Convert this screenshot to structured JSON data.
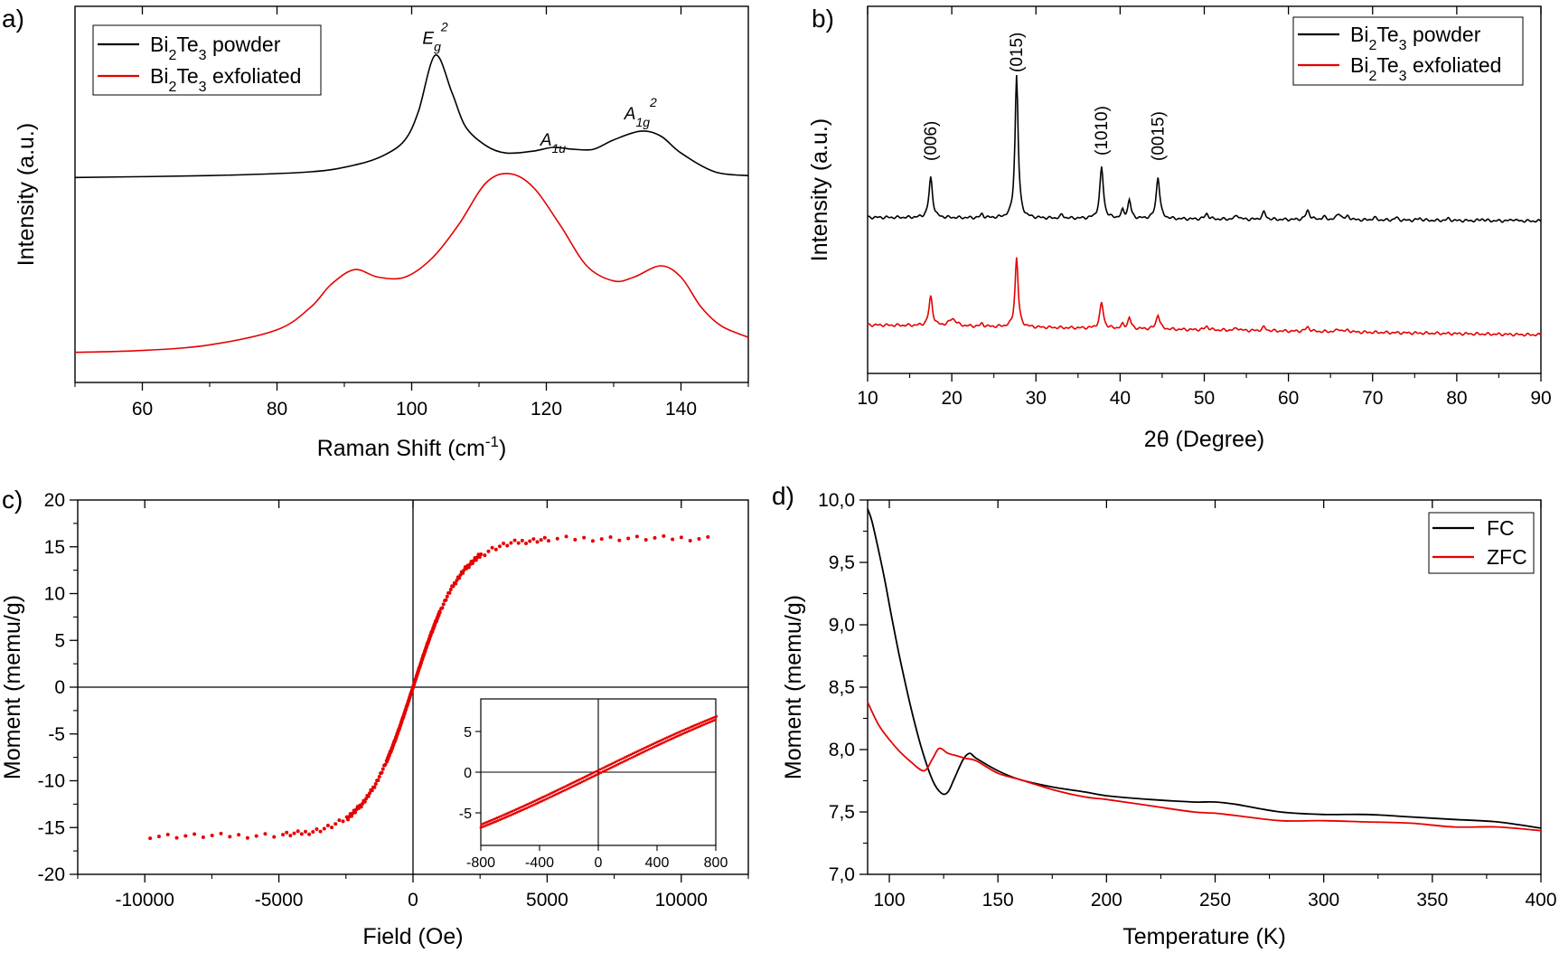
{
  "chart_data": [
    {
      "panel": "a)",
      "type": "line",
      "xlabel": "Raman Shift (cm",
      "xlabel_sup": "-1",
      "xlabel_tail": ")",
      "ylabel": "Intensity (a.u.)",
      "xlim": [
        50,
        150
      ],
      "ylim": [
        0,
        1
      ],
      "xticks": [
        60,
        80,
        100,
        120,
        140
      ],
      "yticks_shown": false,
      "legend_position": "top-left",
      "legend": [
        "Bi2Te3 powder",
        "Bi2Te3 exfoliated"
      ],
      "peak_labels": [
        {
          "base": "E",
          "sub": "g",
          "sup": "2",
          "x": 103.5,
          "y": 0.9
        },
        {
          "base": "A",
          "sub": "1u",
          "sup": "",
          "x": 121,
          "y": 0.63
        },
        {
          "base": "A",
          "sub": "1g",
          "sup": "2",
          "x": 134,
          "y": 0.7
        }
      ],
      "series": [
        {
          "name": "Bi2Te3 powder",
          "color": "#000000",
          "x": [
            50,
            70,
            85,
            92,
            96,
            99,
            101,
            103.5,
            106,
            108,
            111,
            114,
            118,
            121,
            124,
            127,
            130,
            134,
            137,
            140,
            145,
            150
          ],
          "y": [
            0.545,
            0.55,
            0.56,
            0.58,
            0.605,
            0.645,
            0.72,
            0.87,
            0.77,
            0.68,
            0.63,
            0.61,
            0.615,
            0.625,
            0.62,
            0.62,
            0.645,
            0.668,
            0.655,
            0.61,
            0.56,
            0.55
          ]
        },
        {
          "name": "Bi2Te3 exfoliated",
          "color": "#e60000",
          "x": [
            50,
            60,
            70,
            80,
            85,
            88,
            91.5,
            95,
            99,
            103,
            107,
            111,
            114.5,
            118,
            122,
            126,
            130,
            133,
            137,
            140,
            143,
            146,
            150
          ],
          "y": [
            0.08,
            0.085,
            0.1,
            0.14,
            0.2,
            0.26,
            0.3,
            0.28,
            0.28,
            0.33,
            0.42,
            0.53,
            0.555,
            0.52,
            0.42,
            0.31,
            0.27,
            0.28,
            0.31,
            0.28,
            0.2,
            0.15,
            0.12
          ]
        }
      ]
    },
    {
      "panel": "b)",
      "type": "line",
      "xlabel": "2θ (Degree)",
      "ylabel": "Intensity (a.u.)",
      "xlim": [
        10,
        90
      ],
      "ylim": [
        0,
        1
      ],
      "xticks": [
        10,
        20,
        30,
        40,
        50,
        60,
        70,
        80,
        90
      ],
      "yticks_shown": false,
      "legend_position": "top-right",
      "legend": [
        "Bi2Te3 powder",
        "Bi2Te3 exfoliated"
      ],
      "peak_labels": [
        {
          "text": "(006)",
          "x": 17.5
        },
        {
          "text": "(015)",
          "x": 27.7
        },
        {
          "text": "(1010)",
          "x": 37.8
        },
        {
          "text": "(0015)",
          "x": 44.5
        }
      ],
      "series": [
        {
          "name": "Bi2Te3 powder",
          "color": "#000000",
          "baseline_start": 0.425,
          "baseline_end": 0.415,
          "peaks": [
            [
              17.5,
              0.11,
              0.25
            ],
            [
              23.6,
              0.01,
              0.2
            ],
            [
              27.7,
              0.39,
              0.22
            ],
            [
              33.1,
              0.01,
              0.2
            ],
            [
              37.8,
              0.14,
              0.25
            ],
            [
              40.3,
              0.02,
              0.2
            ],
            [
              41.1,
              0.05,
              0.22
            ],
            [
              44.5,
              0.115,
              0.25
            ],
            [
              50.3,
              0.015,
              0.25
            ],
            [
              53.9,
              0.012,
              0.25
            ],
            [
              57.1,
              0.02,
              0.25
            ],
            [
              62.3,
              0.025,
              0.28
            ],
            [
              64.2,
              0.008,
              0.25
            ],
            [
              66.0,
              0.018,
              0.28
            ],
            [
              67.1,
              0.01,
              0.25
            ],
            [
              70.2,
              0.007,
              0.25
            ],
            [
              72.8,
              0.007,
              0.25
            ],
            [
              75.6,
              0.006,
              0.25
            ],
            [
              79.0,
              0.005,
              0.25
            ],
            [
              83.0,
              0.005,
              0.25
            ],
            [
              86.7,
              0.005,
              0.25
            ]
          ]
        },
        {
          "name": "Bi2Te3 exfoliated",
          "color": "#e60000",
          "baseline_start": 0.132,
          "baseline_end": 0.105,
          "peaks": [
            [
              17.5,
              0.08,
              0.25
            ],
            [
              20.1,
              0.02,
              0.5
            ],
            [
              23.6,
              0.008,
              0.2
            ],
            [
              27.7,
              0.19,
              0.22
            ],
            [
              37.8,
              0.07,
              0.25
            ],
            [
              40.3,
              0.01,
              0.2
            ],
            [
              41.1,
              0.03,
              0.22
            ],
            [
              44.5,
              0.04,
              0.25
            ],
            [
              50.3,
              0.01,
              0.25
            ],
            [
              53.9,
              0.007,
              0.25
            ],
            [
              57.1,
              0.01,
              0.25
            ],
            [
              62.3,
              0.012,
              0.28
            ],
            [
              66.0,
              0.008,
              0.28
            ],
            [
              67.1,
              0.005,
              0.25
            ]
          ]
        }
      ]
    },
    {
      "panel": "c)",
      "type": "scatter",
      "xlabel": "Field (Oe)",
      "ylabel": "Moment (memu/g)",
      "xlim": [
        -12500,
        12500
      ],
      "ylim": [
        -20,
        20
      ],
      "xticks": [
        -10000,
        -5000,
        0,
        5000,
        10000
      ],
      "yticks": [
        -20,
        -15,
        -10,
        -5,
        0,
        5,
        10,
        15,
        20
      ],
      "series": [
        {
          "name": "",
          "color": "#e60000",
          "model": "Ms*tanh(H/H0)",
          "Ms": 15.9,
          "H0": 1800,
          "h_range": [
            -9800,
            11000
          ]
        }
      ],
      "inset": {
        "type": "scatter",
        "xlim": [
          -800,
          800
        ],
        "ylim": [
          -9,
          9
        ],
        "xticks": [
          -800,
          -400,
          0,
          400,
          800
        ],
        "yticks": [
          -5,
          0,
          5
        ],
        "hysteresis_shift_oe": 25
      }
    },
    {
      "panel": "d)",
      "type": "line",
      "xlabel": "Temperature (K)",
      "ylabel": "Moment (memu/g)",
      "xlim": [
        90,
        400
      ],
      "ylim": [
        7.0,
        10.0
      ],
      "xticks": [
        100,
        150,
        200,
        250,
        300,
        350,
        400
      ],
      "xtick_labels": [
        "100",
        "150",
        "200",
        "250",
        "300",
        "350",
        "400"
      ],
      "yticks": [
        7.0,
        7.5,
        8.0,
        8.5,
        9.0,
        9.5,
        10.0
      ],
      "ytick_labels": [
        "7,0",
        "7,5",
        "8,0",
        "8,5",
        "9,0",
        "9,5",
        "10,0"
      ],
      "legend_position": "top-right",
      "legend": [
        "FC",
        "ZFC"
      ],
      "series": [
        {
          "name": "FC",
          "color": "#000000",
          "x": [
            90,
            92,
            95,
            98,
            101,
            105,
            110,
            115,
            120,
            124,
            127,
            130,
            134,
            137,
            140,
            150,
            160,
            175,
            190,
            200,
            220,
            240,
            250,
            260,
            280,
            300,
            320,
            340,
            360,
            380,
            400
          ],
          "y": [
            9.93,
            9.83,
            9.6,
            9.35,
            9.07,
            8.72,
            8.33,
            8.0,
            7.75,
            7.65,
            7.66,
            7.77,
            7.92,
            7.97,
            7.93,
            7.83,
            7.76,
            7.7,
            7.66,
            7.63,
            7.6,
            7.58,
            7.58,
            7.56,
            7.5,
            7.48,
            7.48,
            7.46,
            7.44,
            7.42,
            7.37
          ]
        },
        {
          "name": "ZFC",
          "color": "#e60000",
          "x": [
            90,
            95,
            100,
            105,
            110,
            116,
            120,
            123,
            127,
            131,
            135,
            140,
            150,
            160,
            175,
            190,
            200,
            220,
            240,
            250,
            260,
            280,
            300,
            320,
            340,
            360,
            380,
            400
          ],
          "y": [
            8.38,
            8.2,
            8.08,
            7.98,
            7.9,
            7.83,
            7.93,
            8.01,
            7.97,
            7.95,
            7.93,
            7.91,
            7.81,
            7.76,
            7.68,
            7.62,
            7.6,
            7.55,
            7.5,
            7.49,
            7.47,
            7.43,
            7.43,
            7.42,
            7.41,
            7.38,
            7.38,
            7.35
          ]
        }
      ]
    }
  ]
}
